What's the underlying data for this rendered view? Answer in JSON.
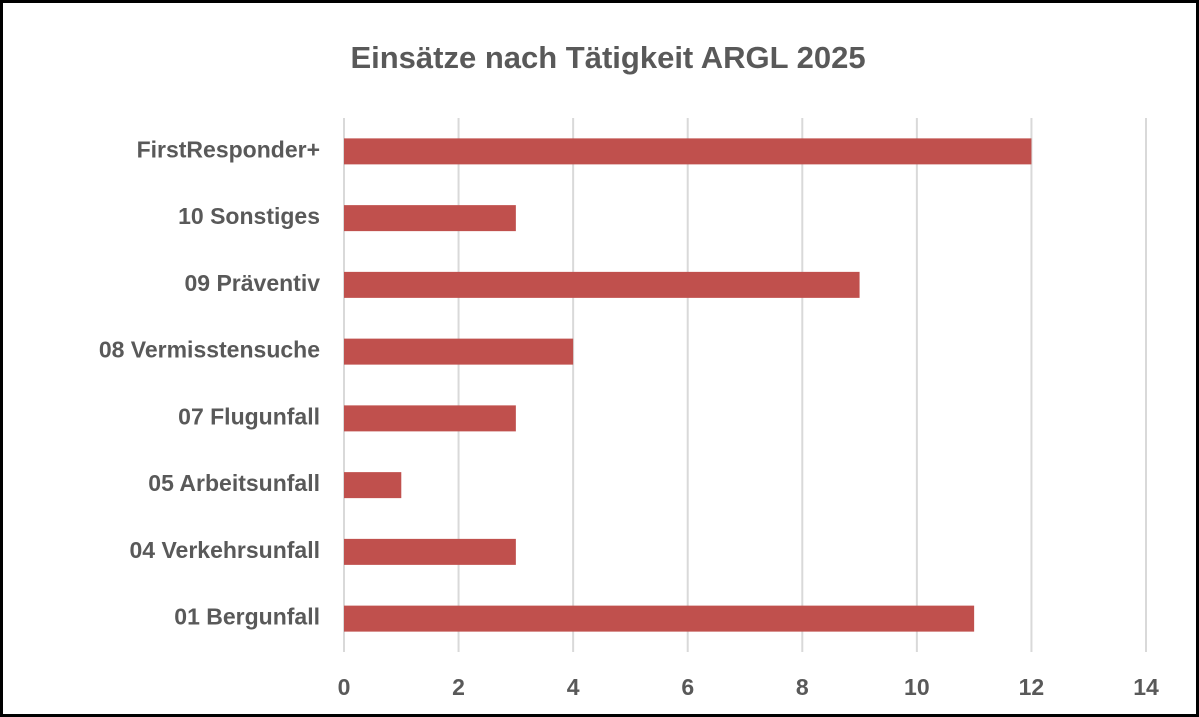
{
  "chart_data": {
    "type": "bar",
    "orientation": "horizontal",
    "title": "Einsätze nach Tätigkeit ARGL 2025",
    "categories": [
      "FirstResponder+",
      "10 Sonstiges",
      "09 Präventiv",
      "08 Vermisstensuche",
      "07 Flugunfall",
      "05 Arbeitsunfall",
      "04 Verkehrsunfall",
      "01 Bergunfall"
    ],
    "values": [
      12,
      3,
      9,
      4,
      3,
      1,
      3,
      11
    ],
    "color": "#c0504d",
    "xlim": [
      0,
      14
    ],
    "xticks": [
      0,
      2,
      4,
      6,
      8,
      10,
      12,
      14
    ],
    "grid": true
  }
}
